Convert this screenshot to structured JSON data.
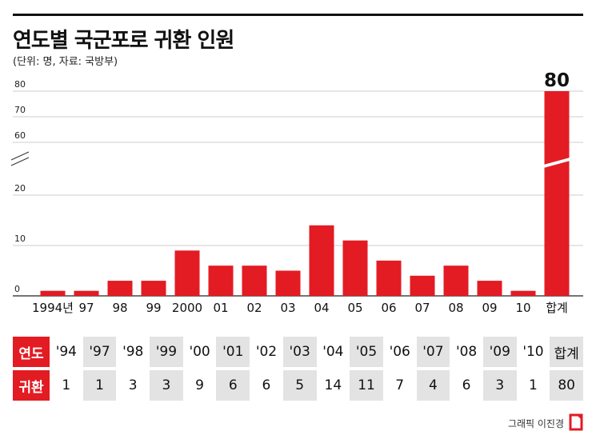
{
  "header": {
    "title": "연도별 국군포로 귀환 인원",
    "subtitle": "(단위: 명, 자료: 국방부)"
  },
  "chart_data": {
    "type": "bar",
    "title": "연도별 국군포로 귀환 인원",
    "subtitle": "(단위: 명, 자료: 국방부)",
    "categories": [
      "1994년",
      "97",
      "98",
      "99",
      "2000",
      "01",
      "02",
      "03",
      "04",
      "05",
      "06",
      "07",
      "08",
      "09",
      "10",
      "합계"
    ],
    "values": [
      1,
      1,
      3,
      3,
      9,
      6,
      6,
      5,
      14,
      11,
      7,
      4,
      6,
      3,
      1,
      80
    ],
    "yticks": [
      "80",
      "70",
      "60",
      "20",
      "10",
      "0"
    ],
    "axis_break": "between 20 and 60",
    "bar_color": "#e31b23",
    "total_label": "80",
    "grid": true
  },
  "table": {
    "row_labels": [
      "연도",
      "귀환"
    ],
    "years": [
      "'94",
      "'97",
      "'98",
      "'99",
      "'00",
      "'01",
      "'02",
      "'03",
      "'04",
      "'05",
      "'06",
      "'07",
      "'08",
      "'09",
      "'10",
      "합계"
    ],
    "counts": [
      "1",
      "1",
      "3",
      "3",
      "9",
      "6",
      "6",
      "5",
      "14",
      "11",
      "7",
      "4",
      "6",
      "3",
      "1",
      "80"
    ]
  },
  "footer": {
    "credit": "그래픽 이진경",
    "logo_icon": "asiae-logo-icon"
  }
}
